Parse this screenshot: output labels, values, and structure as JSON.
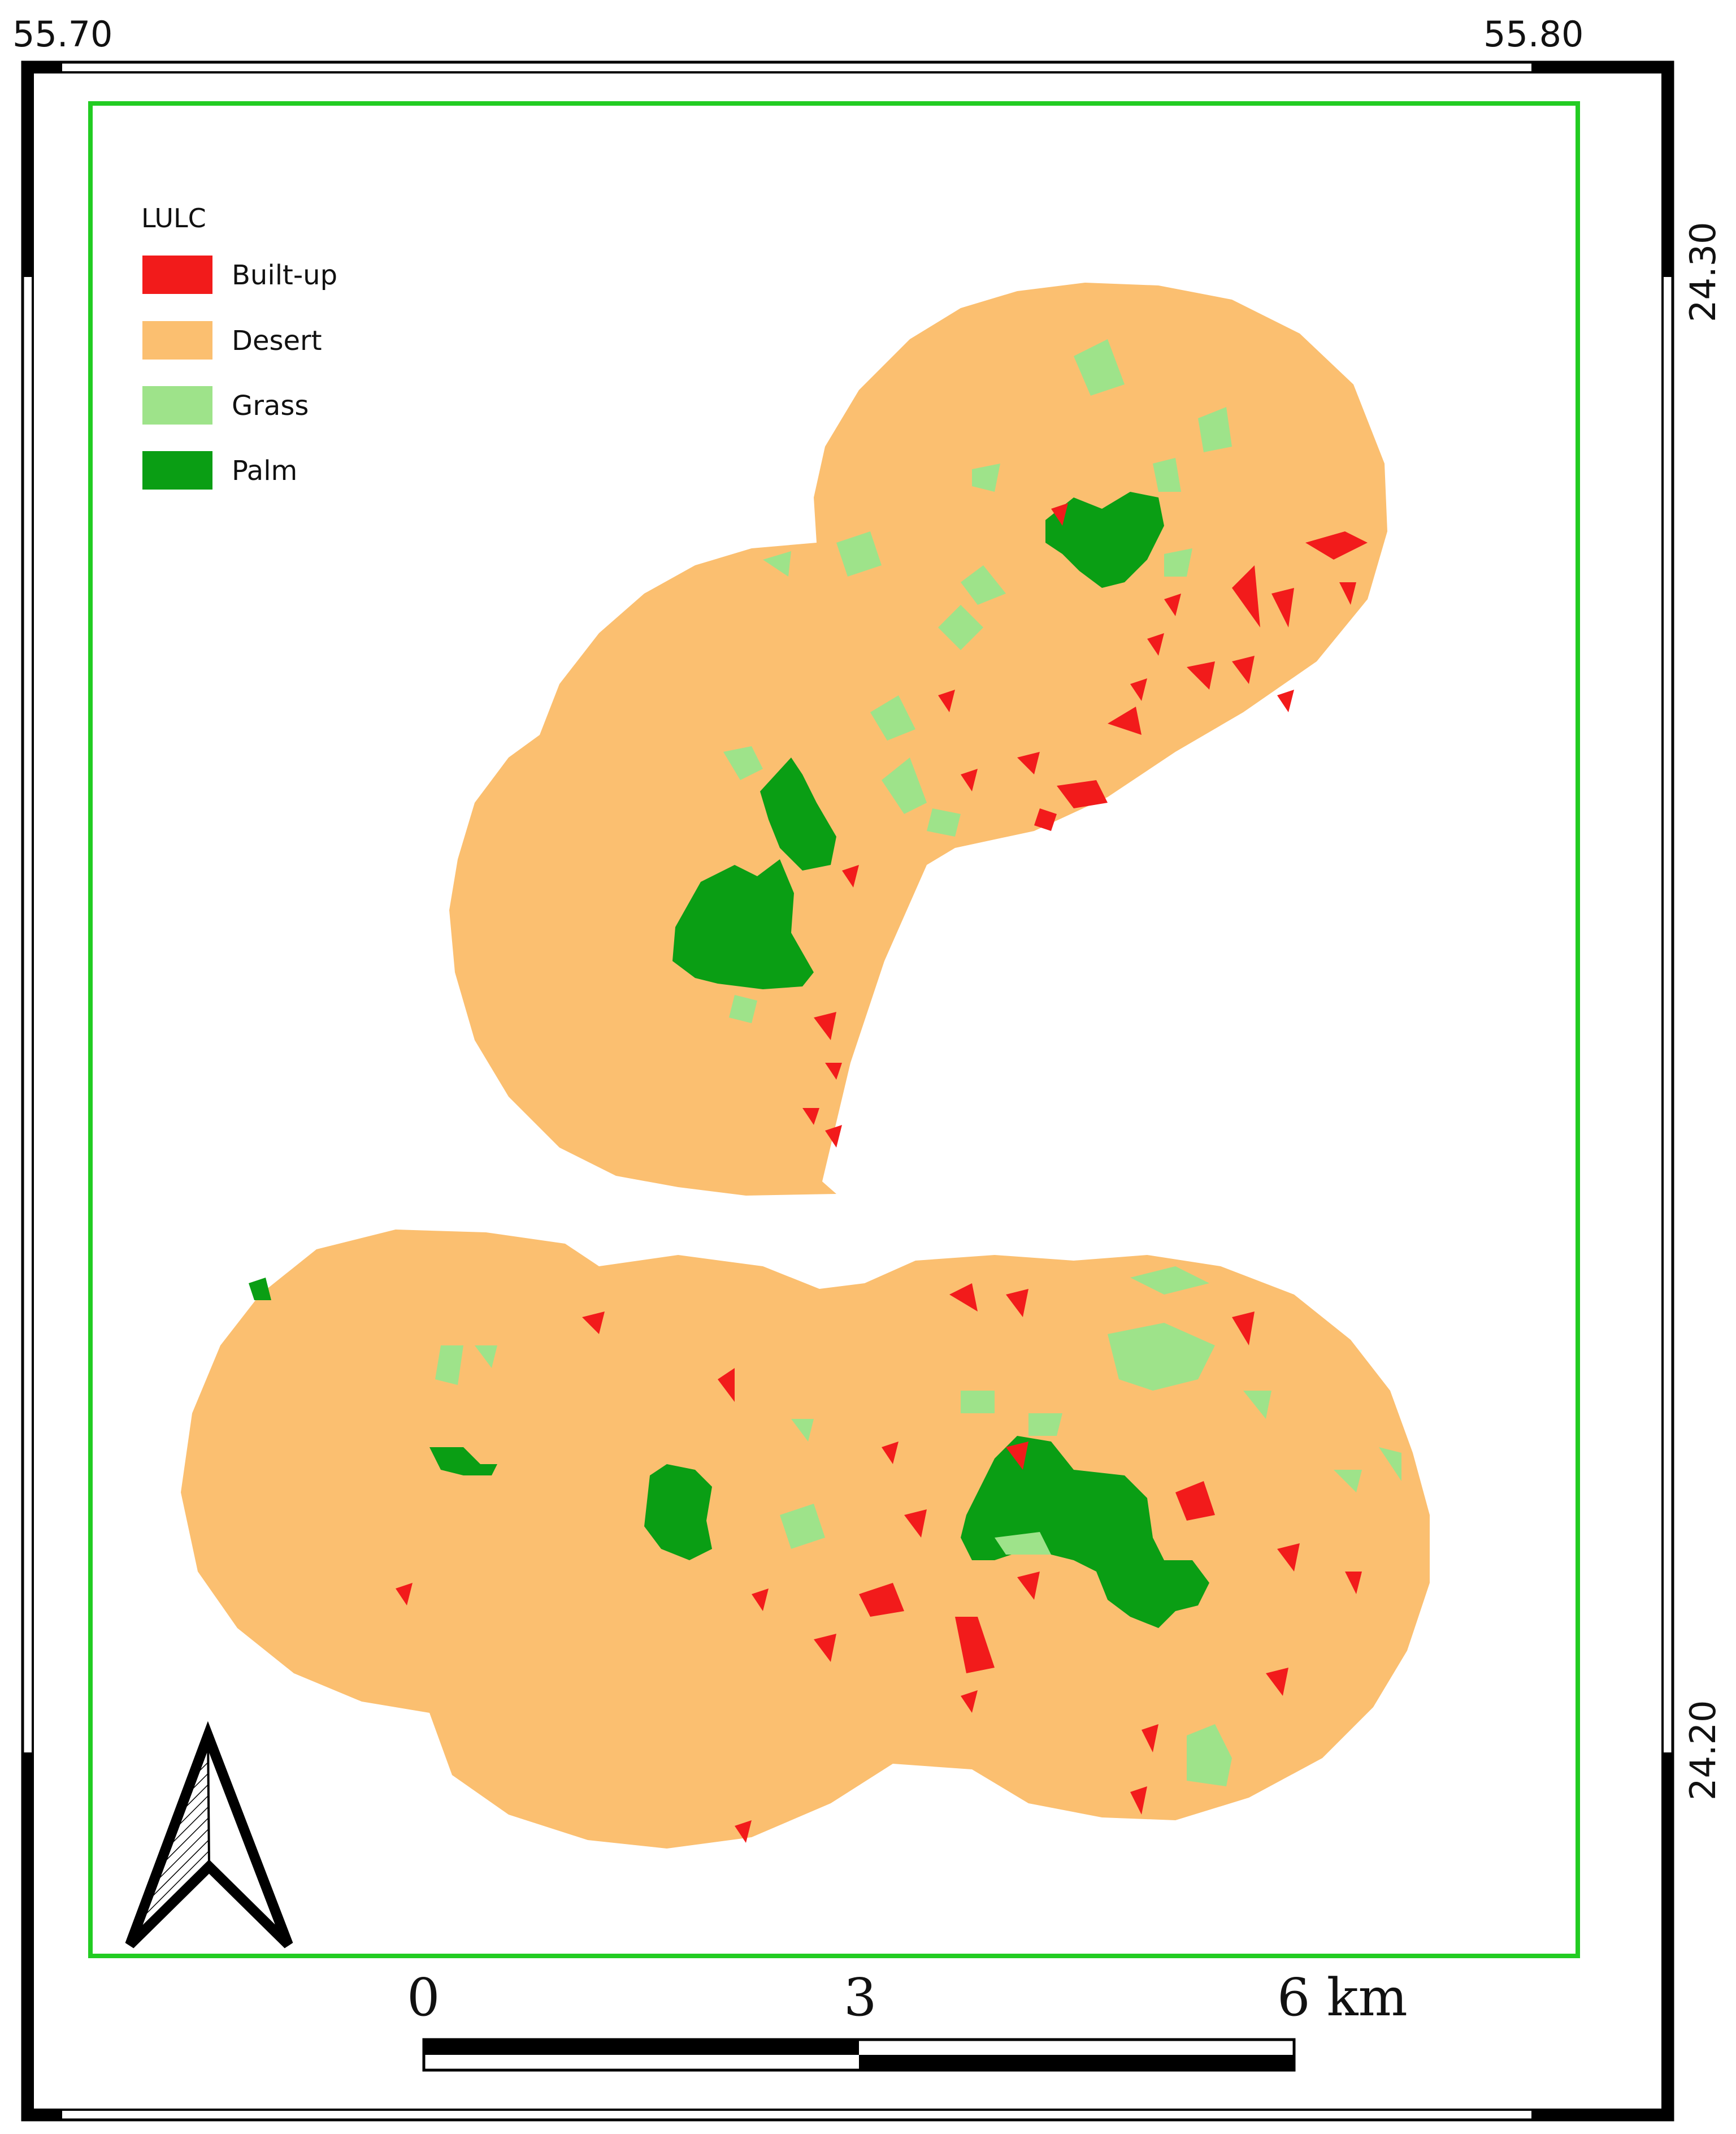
{
  "map": {
    "graticule": {
      "top_left_lon": "55.70",
      "top_right_lon": "55.80",
      "right_upper_lat": "24.30",
      "right_lower_lat": "24.20"
    },
    "legend": {
      "title": "LULC",
      "items": [
        {
          "label": "Built-up",
          "color": "#f21b1b"
        },
        {
          "label": "Desert",
          "color": "#fbbf70"
        },
        {
          "label": "Grass",
          "color": "#9ee38a"
        },
        {
          "label": "Palm",
          "color": "#0a9e14"
        }
      ]
    },
    "scale_bar": {
      "labels": [
        "0",
        "3",
        "6 km"
      ]
    },
    "north_arrow": {
      "icon": "north-arrow-icon"
    },
    "frame_color": "#22cc22"
  }
}
